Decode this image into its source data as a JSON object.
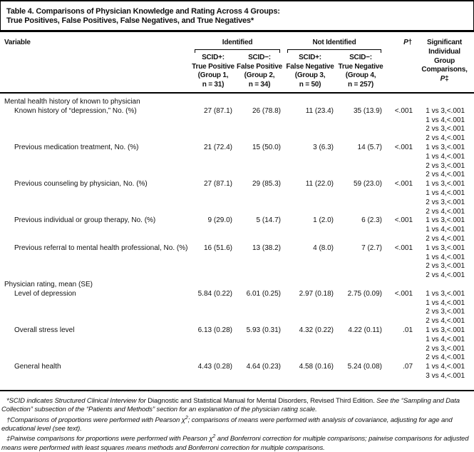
{
  "title": {
    "line1": "Table 4. Comparisons of Physician Knowledge and Rating Across 4 Groups:",
    "line2": "True Positives, False Positives, False Negatives, and True Negatives*"
  },
  "header": {
    "variable": "Variable",
    "identified": "Identified",
    "not_identified": "Not Identified",
    "col1": {
      "l1": "SCID+:",
      "l2": "True Positive",
      "l3": "(Group 1,",
      "l4": "n = 31)"
    },
    "col2": {
      "l1": "SCID−:",
      "l2": "False Positive",
      "l3": "(Group 2,",
      "l4": "n = 34)"
    },
    "col3": {
      "l1": "SCID+:",
      "l2": "False Negative",
      "l3": "(Group 3,",
      "l4": "n = 50)"
    },
    "col4": {
      "l1": "SCID−:",
      "l2": "True Negative",
      "l3": "(Group 4,",
      "l4": "n = 257)"
    },
    "p_label": "P",
    "p_mark": "†",
    "sig": {
      "l1": "Significant",
      "l2": "Individual",
      "l3": "Group",
      "l4": "Comparisons,",
      "p": "P",
      "mark": "‡"
    }
  },
  "rows": [
    {
      "type": "section",
      "label": "Mental health history of known to physician"
    },
    {
      "type": "data",
      "label": "Known history of “depression,” No. (%)",
      "g1": "27 (87.1)",
      "g2": "26 (78.8)",
      "g3": "11 (23.4)",
      "g4": "35 (13.9)",
      "p": "<.001",
      "comps": [
        "1 vs 3,<.001",
        "1 vs 4,<.001",
        "2 vs 3,<.001",
        "2 vs 4,<.001"
      ]
    },
    {
      "type": "data",
      "label": "Previous medication treatment, No. (%)",
      "g1": "21 (72.4)",
      "g2": "15 (50.0)",
      "g3": "3 (6.3)",
      "g4": "14 (5.7)",
      "p": "<.001",
      "comps": [
        "1 vs 3,<.001",
        "1 vs 4,<.001",
        "2 vs 3,<.001",
        "2 vs 4,<.001"
      ]
    },
    {
      "type": "data",
      "label": "Previous counseling by physician, No. (%)",
      "g1": "27 (87.1)",
      "g2": "29 (85.3)",
      "g3": "11 (22.0)",
      "g4": "59 (23.0)",
      "p": "<.001",
      "comps": [
        "1 vs 3,<.001",
        "1 vs 4,<.001",
        "2 vs 3,<.001",
        "2 vs 4,<.001"
      ]
    },
    {
      "type": "data",
      "label": "Previous individual or group therapy, No. (%)",
      "g1": "9 (29.0)",
      "g2": "5 (14.7)",
      "g3": "1 (2.0)",
      "g4": "6 (2.3)",
      "p": "<.001",
      "comps": [
        "1 vs 3,<.001",
        "1 vs 4,<.001",
        "2 vs 4,<.001"
      ]
    },
    {
      "type": "data",
      "label": "Previous referral to mental health professional, No. (%)",
      "g1": "16 (51.6)",
      "g2": "13 (38.2)",
      "g3": "4 (8.0)",
      "g4": "7 (2.7)",
      "p": "<.001",
      "comps": [
        "1 vs 3,<.001",
        "1 vs 4,<.001",
        "2 vs 3,<.001",
        "2 vs 4,<.001"
      ]
    },
    {
      "type": "section",
      "label": "Physician rating, mean (SE)"
    },
    {
      "type": "data",
      "label": "Level of depression",
      "g1": "5.84 (0.22)",
      "g2": "6.01 (0.25)",
      "g3": "2.97 (0.18)",
      "g4": "2.75 (0.09)",
      "p": "<.001",
      "comps": [
        "1 vs 3,<.001",
        "1 vs 4,<.001",
        "2 vs 3,<.001",
        "2 vs 4,<.001"
      ]
    },
    {
      "type": "data",
      "label": "Overall stress level",
      "g1": "6.13 (0.28)",
      "g2": "5.93 (0.31)",
      "g3": "4.32 (0.22)",
      "g4": "4.22 (0.11)",
      "p": ".01",
      "comps": [
        "1 vs 3,<.001",
        "1 vs 4,<.001",
        "2 vs 3,<.001",
        "2 vs 4,<.001"
      ]
    },
    {
      "type": "data",
      "label": "General health",
      "g1": "4.43 (0.28)",
      "g2": "4.64 (0.23)",
      "g3": "4.58 (0.16)",
      "g4": "5.24 (0.08)",
      "p": ".07",
      "comps": [
        "1 vs 4,<.001",
        "3 vs 4,<.001"
      ]
    }
  ],
  "footnotes": {
    "f1a": "*SCID indicates Structured Clinical Interview for ",
    "f1b": "Diagnostic and Statistical Manual for Mental Disorders, Revised Third Edition. ",
    "f1c": "See the “Sampling and Data Collection” subsection of the “Patients and Methods” section for an explanation of the physician rating scale.",
    "f2a": "†Comparisons of proportions were performed with Pearson χ",
    "f2sup": "2",
    "f2b": "; comparisons of means were performed with analysis of covariance, adjusting for age and educational level (see text).",
    "f3a": "‡Pairwise comparisons for proportions were performed with Pearson χ",
    "f3sup": "2",
    "f3b": " and Bonferroni correction for multiple comparisons; pairwise comparisons for adjusted means were performed with least squares means methods and Bonferroni correction for multiple comparisons."
  },
  "colors": {
    "text": "#111111",
    "rule": "#000000",
    "background": "#ffffff"
  }
}
